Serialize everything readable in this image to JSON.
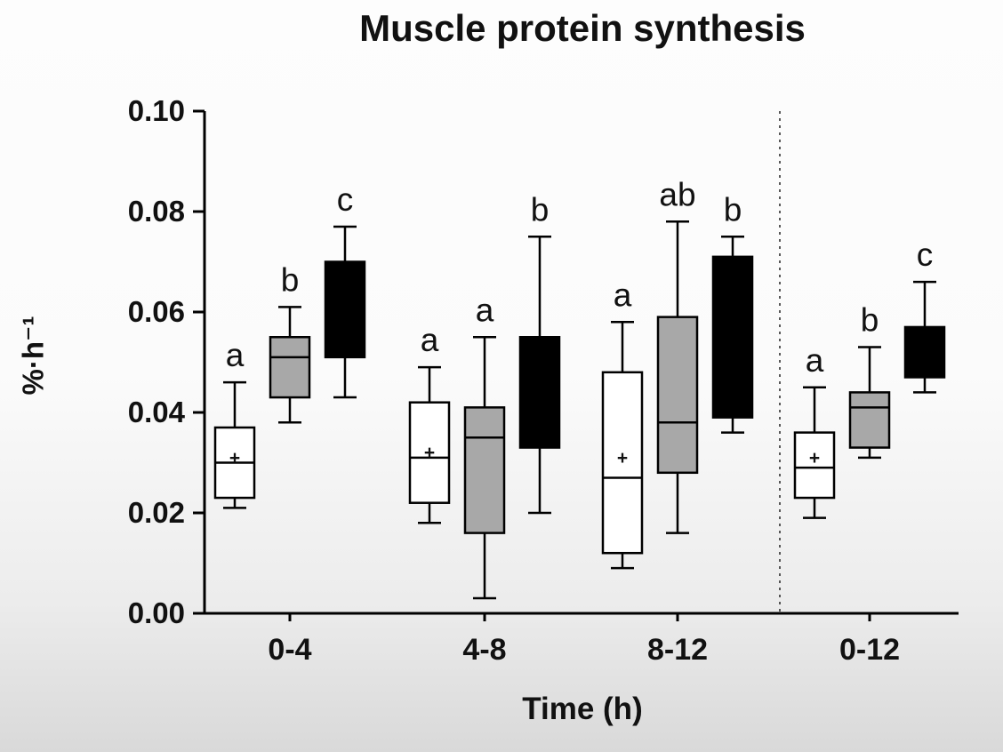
{
  "chart_data": {
    "type": "boxplot",
    "title": "Muscle protein synthesis",
    "xlabel": "Time (h)",
    "ylabel": "%·h⁻¹",
    "ylim": [
      0,
      0.1
    ],
    "grid": false,
    "legend": "none",
    "yticks": [
      {
        "value": 0.0,
        "label": "0.00"
      },
      {
        "value": 0.02,
        "label": "0.02"
      },
      {
        "value": 0.04,
        "label": "0.04"
      },
      {
        "value": 0.06,
        "label": "0.06"
      },
      {
        "value": 0.08,
        "label": "0.08"
      },
      {
        "value": 0.1,
        "label": "0.10"
      }
    ],
    "categories": [
      "0-4",
      "4-8",
      "8-12",
      "0-12"
    ],
    "separator": {
      "after_category_index": 2,
      "style": "dashed-vertical-line"
    },
    "series": [
      {
        "name": "white-box",
        "fill": "#ffffff",
        "boxes": [
          {
            "category": "0-4",
            "low": 0.021,
            "q1": 0.023,
            "median": 0.03,
            "q3": 0.037,
            "high": 0.046,
            "mean": 0.031,
            "sig": "a"
          },
          {
            "category": "4-8",
            "low": 0.018,
            "q1": 0.022,
            "median": 0.031,
            "q3": 0.042,
            "high": 0.049,
            "mean": 0.032,
            "sig": "a"
          },
          {
            "category": "8-12",
            "low": 0.009,
            "q1": 0.012,
            "median": 0.027,
            "q3": 0.048,
            "high": 0.058,
            "mean": 0.031,
            "sig": "a"
          },
          {
            "category": "0-12",
            "low": 0.019,
            "q1": 0.023,
            "median": 0.029,
            "q3": 0.036,
            "high": 0.045,
            "mean": 0.031,
            "sig": "a"
          }
        ]
      },
      {
        "name": "gray-box",
        "fill": "#a8a8a8",
        "boxes": [
          {
            "category": "0-4",
            "low": 0.038,
            "q1": 0.043,
            "median": 0.051,
            "q3": 0.055,
            "high": 0.061,
            "mean": null,
            "sig": "b"
          },
          {
            "category": "4-8",
            "low": 0.003,
            "q1": 0.016,
            "median": 0.035,
            "q3": 0.041,
            "high": 0.055,
            "mean": null,
            "sig": "a"
          },
          {
            "category": "8-12",
            "low": 0.016,
            "q1": 0.028,
            "median": 0.038,
            "q3": 0.059,
            "high": 0.078,
            "mean": null,
            "sig": "ab"
          },
          {
            "category": "0-12",
            "low": 0.031,
            "q1": 0.033,
            "median": 0.041,
            "q3": 0.044,
            "high": 0.053,
            "mean": null,
            "sig": "b"
          }
        ]
      },
      {
        "name": "black-box",
        "fill": "#000000",
        "boxes": [
          {
            "category": "0-4",
            "low": 0.043,
            "q1": 0.051,
            "median": null,
            "q3": 0.07,
            "high": 0.077,
            "mean": null,
            "sig": "c"
          },
          {
            "category": "4-8",
            "low": 0.02,
            "q1": 0.033,
            "median": null,
            "q3": 0.055,
            "high": 0.075,
            "mean": null,
            "sig": "b"
          },
          {
            "category": "8-12",
            "low": 0.036,
            "q1": 0.039,
            "median": null,
            "q3": 0.071,
            "high": 0.075,
            "mean": null,
            "sig": "b"
          },
          {
            "category": "0-12",
            "low": 0.044,
            "q1": 0.047,
            "median": null,
            "q3": 0.057,
            "high": 0.066,
            "mean": null,
            "sig": "c"
          }
        ]
      }
    ]
  }
}
